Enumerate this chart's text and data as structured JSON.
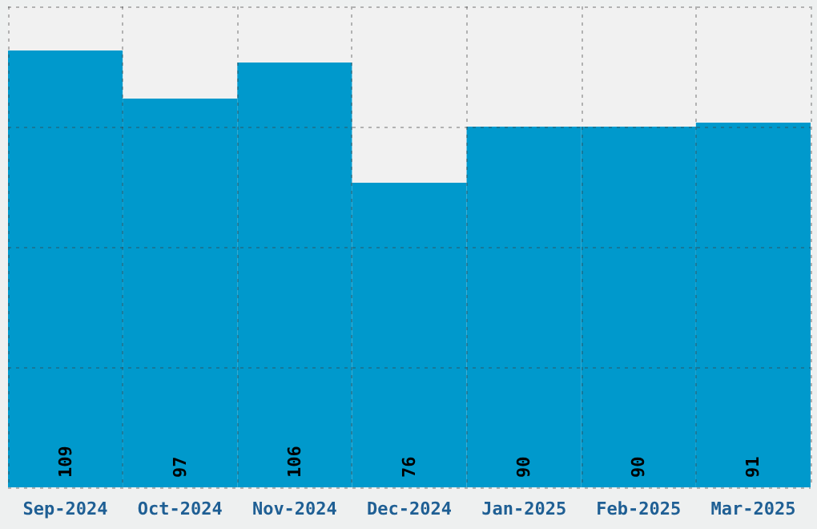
{
  "chart_data": {
    "type": "bar",
    "categories": [
      "Sep-2024",
      "Oct-2024",
      "Nov-2024",
      "Dec-2024",
      "Jan-2025",
      "Feb-2025",
      "Mar-2025"
    ],
    "values": [
      109,
      97,
      106,
      76,
      90,
      90,
      91
    ],
    "color": "#0099cc",
    "ylim": [
      0,
      120
    ],
    "yticks": [
      {
        "value": 0,
        "label": null
      },
      {
        "value": 30,
        "label": null
      },
      {
        "value": 60,
        "label": null
      },
      {
        "value": 90,
        "label": null
      },
      {
        "value": 120,
        "label": null
      }
    ],
    "grid": true,
    "tick_labels": "x",
    "data_labels": true
  }
}
